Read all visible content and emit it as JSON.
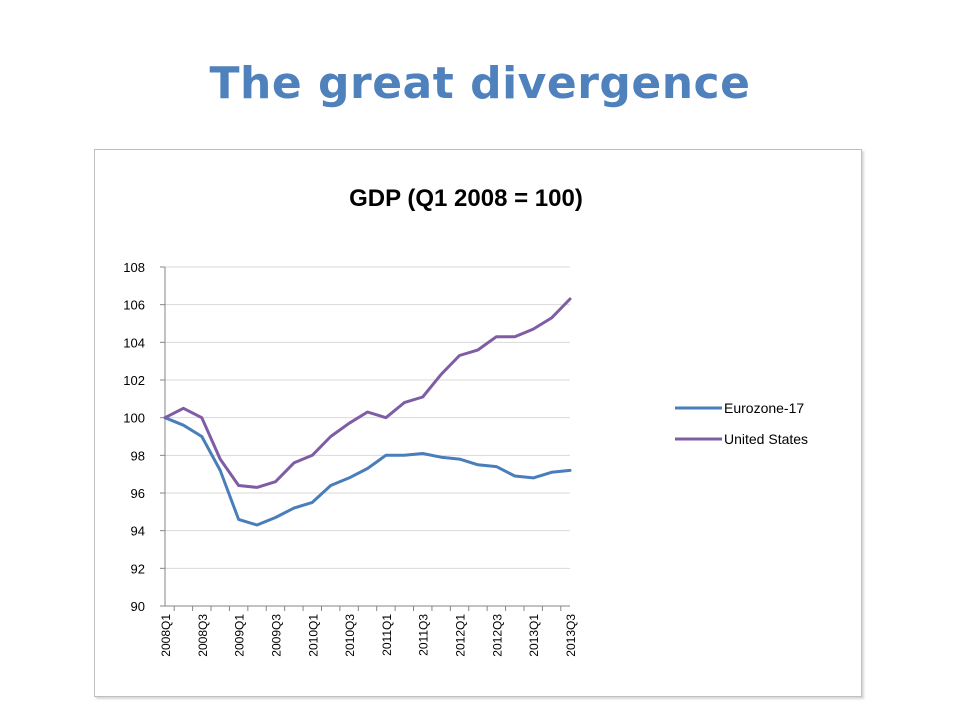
{
  "slide": {
    "title": "The great divergence"
  },
  "chart_data": {
    "type": "line",
    "title": "GDP (Q1 2008 = 100)",
    "xlabel": "",
    "ylabel": "",
    "ylim": [
      90,
      108
    ],
    "yticks": [
      90,
      92,
      94,
      96,
      98,
      100,
      102,
      104,
      106,
      108
    ],
    "grid": true,
    "legend_position": "right",
    "x": [
      "2008Q1",
      "2008Q2",
      "2008Q3",
      "2008Q4",
      "2009Q1",
      "2009Q2",
      "2009Q3",
      "2009Q4",
      "2010Q1",
      "2010Q2",
      "2010Q3",
      "2010Q4",
      "2011Q1",
      "2011Q2",
      "2011Q3",
      "2011Q4",
      "2012Q1",
      "2012Q2",
      "2012Q3",
      "2012Q4",
      "2013Q1",
      "2013Q2",
      "2013Q3"
    ],
    "x_tick_labels": [
      "2008Q1",
      "2008Q3",
      "2009Q1",
      "2009Q3",
      "2010Q1",
      "2010Q3",
      "2011Q1",
      "2011Q3",
      "2012Q1",
      "2012Q3",
      "2013Q1",
      "2013Q3"
    ],
    "series": [
      {
        "name": "Eurozone-17",
        "color": "#4a7ebb",
        "values": [
          100,
          99.6,
          99.0,
          97.2,
          94.6,
          94.3,
          94.7,
          95.2,
          95.5,
          96.4,
          96.8,
          97.3,
          98.0,
          98.0,
          98.1,
          97.9,
          97.8,
          97.5,
          97.4,
          96.9,
          96.8,
          97.1,
          97.2
        ]
      },
      {
        "name": "United States",
        "color": "#7f5da4",
        "values": [
          100,
          100.5,
          100.0,
          97.8,
          96.4,
          96.3,
          96.6,
          97.6,
          98.0,
          99.0,
          99.7,
          100.3,
          100.0,
          100.8,
          101.1,
          102.3,
          103.3,
          103.6,
          104.3,
          104.3,
          104.7,
          105.3,
          106.3
        ]
      }
    ]
  }
}
